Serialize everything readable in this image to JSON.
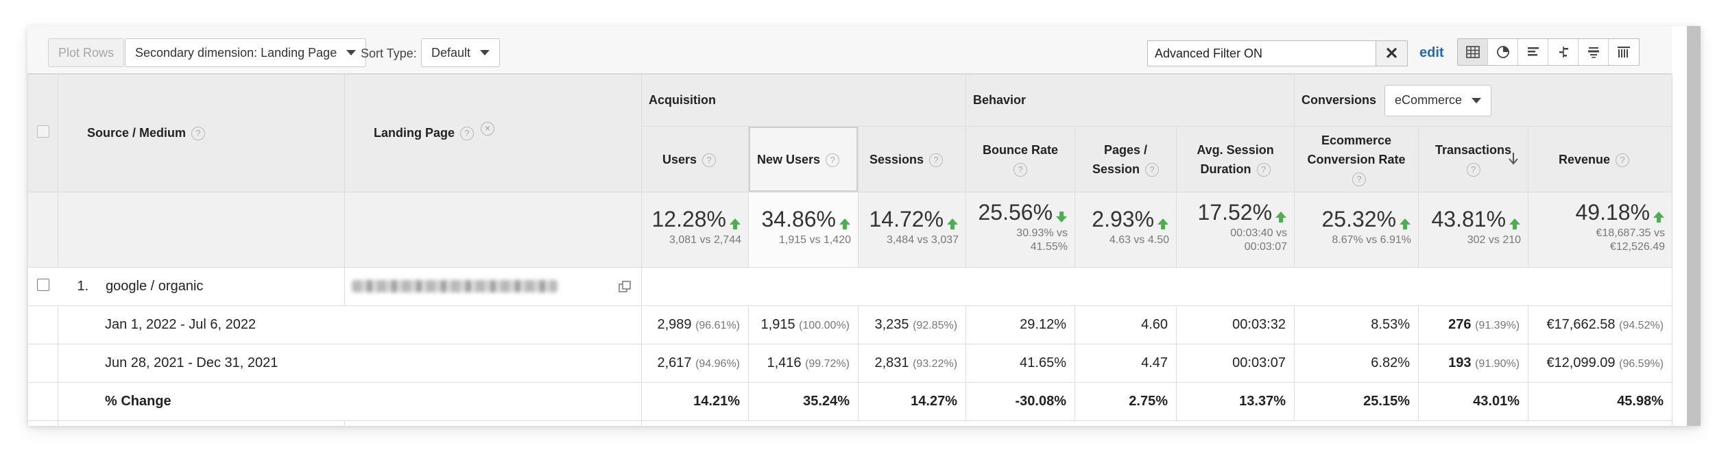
{
  "toolbar": {
    "plot_rows": "Plot Rows",
    "secondary_dimension": "Secondary dimension: Landing Page",
    "sort_type_label": "Sort Type:",
    "sort_type_value": "Default",
    "filter_value": "Advanced Filter ON",
    "edit_label": "edit",
    "views": [
      "data-table-icon",
      "pie-chart-icon",
      "performance-bar-icon",
      "comparison-icon",
      "term-cloud-icon",
      "pivot-icon"
    ]
  },
  "groups": {
    "acquisition": "Acquisition",
    "behavior": "Behavior",
    "conversions": "Conversions",
    "conversions_select": "eCommerce"
  },
  "dimensions": {
    "source_medium": "Source / Medium",
    "landing_page": "Landing Page"
  },
  "metrics": [
    {
      "key": "users",
      "line1": "Users",
      "line2": ""
    },
    {
      "key": "new_users",
      "line1": "New Users",
      "line2": ""
    },
    {
      "key": "sessions",
      "line1": "Sessions",
      "line2": ""
    },
    {
      "key": "bounce_rate",
      "line1": "Bounce Rate",
      "line2": ""
    },
    {
      "key": "pages_session",
      "line1": "Pages /",
      "line2": "Session"
    },
    {
      "key": "avg_session",
      "line1": "Avg. Session",
      "line2": "Duration"
    },
    {
      "key": "ecom_rate",
      "line1": "Ecommerce",
      "line2": "Conversion Rate"
    },
    {
      "key": "transactions",
      "line1": "Transactions",
      "line2": ""
    },
    {
      "key": "revenue",
      "line1": "Revenue",
      "line2": ""
    }
  ],
  "summary": [
    {
      "pct": "12.28%",
      "dir": "up",
      "cmp1": "3,081 vs 2,744",
      "cmp2": ""
    },
    {
      "pct": "34.86%",
      "dir": "up",
      "cmp1": "1,915 vs 1,420",
      "cmp2": ""
    },
    {
      "pct": "14.72%",
      "dir": "up",
      "cmp1": "3,484 vs 3,037",
      "cmp2": ""
    },
    {
      "pct": "25.56%",
      "dir": "down",
      "cmp1": "30.93% vs",
      "cmp2": "41.55%"
    },
    {
      "pct": "2.93%",
      "dir": "up",
      "cmp1": "4.63 vs 4.50",
      "cmp2": ""
    },
    {
      "pct": "17.52%",
      "dir": "up",
      "cmp1": "00:03:40 vs",
      "cmp2": "00:03:07"
    },
    {
      "pct": "25.32%",
      "dir": "up",
      "cmp1": "8.67% vs 6.91%",
      "cmp2": ""
    },
    {
      "pct": "43.81%",
      "dir": "up",
      "cmp1": "302 vs 210",
      "cmp2": ""
    },
    {
      "pct": "49.18%",
      "dir": "up",
      "cmp1": "€18,687.35 vs",
      "cmp2": "€12,526.49"
    }
  ],
  "row1": {
    "index": "1.",
    "source": "google / organic"
  },
  "periods": [
    {
      "label": "Jan 1, 2022 - Jul 6, 2022",
      "cells": [
        {
          "v": "2,989",
          "p": "(96.61%)"
        },
        {
          "v": "1,915",
          "p": "(100.00%)"
        },
        {
          "v": "3,235",
          "p": "(92.85%)"
        },
        {
          "v": "29.12%",
          "p": ""
        },
        {
          "v": "4.60",
          "p": ""
        },
        {
          "v": "00:03:32",
          "p": ""
        },
        {
          "v": "8.53%",
          "p": ""
        },
        {
          "v": "276",
          "p": "(91.39%)"
        },
        {
          "v": "€17,662.58",
          "p": "(94.52%)"
        }
      ]
    },
    {
      "label": "Jun 28, 2021 - Dec 31, 2021",
      "cells": [
        {
          "v": "2,617",
          "p": "(94.96%)"
        },
        {
          "v": "1,416",
          "p": "(99.72%)"
        },
        {
          "v": "2,831",
          "p": "(93.22%)"
        },
        {
          "v": "41.65%",
          "p": ""
        },
        {
          "v": "4.47",
          "p": ""
        },
        {
          "v": "00:03:07",
          "p": ""
        },
        {
          "v": "6.82%",
          "p": ""
        },
        {
          "v": "193",
          "p": "(91.90%)"
        },
        {
          "v": "€12,099.09",
          "p": "(96.59%)"
        }
      ]
    }
  ],
  "change": {
    "label": "% Change",
    "cells": [
      "14.21%",
      "35.24%",
      "14.27%",
      "-30.08%",
      "2.75%",
      "13.37%",
      "25.15%",
      "43.01%",
      "45.98%"
    ]
  },
  "colors": {
    "up_arrow": "#4caf50",
    "down_arrow": "#4caf50",
    "link": "#2067c8"
  }
}
